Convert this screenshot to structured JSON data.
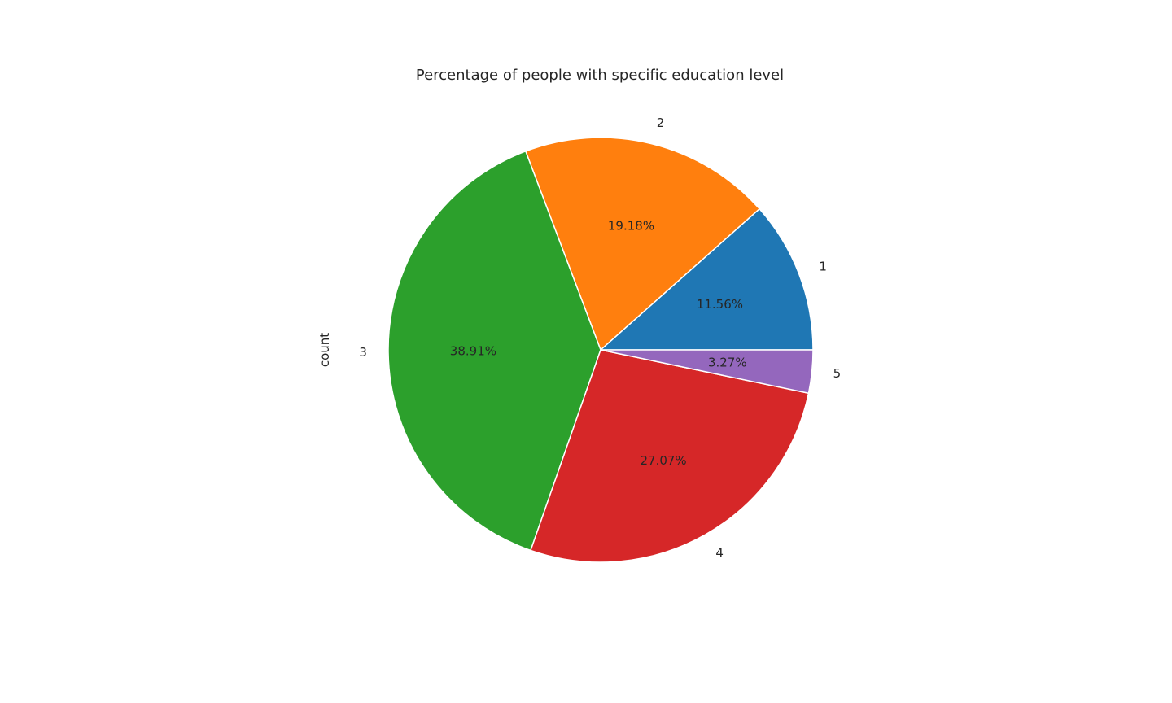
{
  "chart_data": {
    "type": "pie",
    "title": "Percentage of people with specific education level",
    "ylabel": "count",
    "categories": [
      "1",
      "2",
      "3",
      "4",
      "5"
    ],
    "values": [
      11.56,
      19.18,
      38.91,
      27.07,
      3.27
    ],
    "value_labels": [
      "11.56%",
      "19.18%",
      "38.91%",
      "27.07%",
      "3.27%"
    ],
    "colors": [
      "#1f77b4",
      "#ff7f0e",
      "#2ca02c",
      "#d62728",
      "#9467bd"
    ],
    "start_angle": 0,
    "direction": "counterclockwise",
    "legend": "none"
  }
}
